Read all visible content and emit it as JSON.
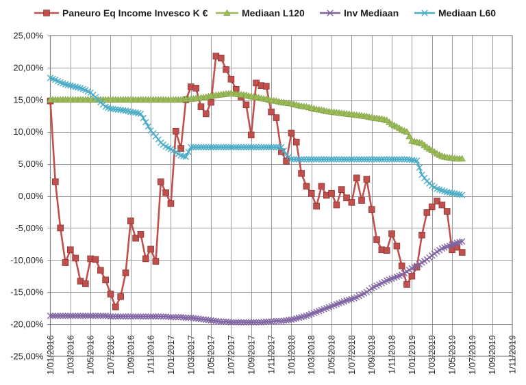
{
  "chart_data": {
    "type": "line",
    "title": "",
    "start_month": "2016-01",
    "points_per_month": 2,
    "x_months_total": 46,
    "ylim": [
      -25,
      25
    ],
    "y_step": 5,
    "grid": true,
    "legend_position": "top",
    "axis_color": "#808080",
    "grid_color": "#9b9b9b",
    "text_color": "#262626",
    "y_tick_labels": [
      "25,00%",
      "20,00%",
      "15,00%",
      "10,00%",
      "5,00%",
      "0,00%",
      "-5,00%",
      "-10,00%",
      "-15,00%",
      "-20,00%",
      "-25,00%"
    ],
    "x_tick_labels": [
      "1/01/2016",
      "1/03/2016",
      "1/05/2016",
      "1/07/2016",
      "1/09/2016",
      "1/11/2016",
      "1/01/2017",
      "1/03/2017",
      "1/05/2017",
      "1/07/2017",
      "1/09/2017",
      "1/11/2017",
      "1/01/2018",
      "1/03/2018",
      "1/05/2018",
      "1/07/2018",
      "1/09/2018",
      "1/11/2018",
      "1/01/2019",
      "1/03/2019",
      "1/05/2019",
      "1/07/2019",
      "1/09/2019",
      "1/11/2019"
    ],
    "series": [
      {
        "name": "Paneuro Eq Income Invesco K €",
        "color": "#C0504D",
        "edge": "#8C3331",
        "marker": "square",
        "values": [
          14.8,
          2.2,
          -5.0,
          -10.4,
          -8.4,
          -9.7,
          -13.3,
          -13.7,
          -9.8,
          -9.9,
          -11.6,
          -13.1,
          -15.3,
          -17.3,
          -15.7,
          -12.0,
          -3.9,
          -6.6,
          -6.0,
          -9.8,
          -8.3,
          -10.2,
          2.2,
          0.5,
          -1.2,
          10.1,
          7.4,
          15.0,
          17.0,
          16.8,
          13.9,
          12.8,
          14.6,
          21.8,
          21.5,
          19.7,
          18.2,
          16.6,
          15.4,
          14.2,
          9.5,
          17.6,
          17.2,
          17.1,
          13.1,
          12.2,
          6.9,
          5.4,
          9.8,
          8.4,
          3.5,
          1.5,
          0.4,
          -1.6,
          1.5,
          0.1,
          0.4,
          -1.4,
          1.0,
          -0.3,
          -1.0,
          2.8,
          -0.7,
          2.6,
          -2.1,
          -6.8,
          -8.4,
          -8.5,
          -5.9,
          -7.8,
          -10.9,
          -13.8,
          -12.5,
          -11.1,
          -6.1,
          -2.6,
          -1.7,
          -0.8,
          -1.4,
          -2.4,
          -8.4,
          -8.0,
          -8.8
        ]
      },
      {
        "name": "Mediaan L120",
        "color": "#9BBB59",
        "edge": "#77933C",
        "marker": "triangle",
        "values": [
          15.0,
          15.0,
          15.0,
          15.0,
          15.0,
          15.0,
          15.0,
          15.0,
          15.0,
          15.0,
          15.0,
          15.0,
          15.0,
          15.0,
          15.0,
          15.0,
          15.0,
          15.0,
          15.0,
          15.0,
          15.0,
          15.0,
          15.0,
          15.0,
          15.0,
          15.0,
          15.0,
          15.1,
          15.1,
          15.2,
          15.3,
          15.4,
          15.6,
          15.7,
          15.8,
          15.9,
          16.0,
          15.9,
          15.8,
          15.7,
          15.5,
          15.4,
          15.2,
          15.1,
          14.9,
          14.8,
          14.6,
          14.5,
          14.4,
          14.2,
          14.0,
          13.9,
          13.7,
          13.5,
          13.4,
          13.2,
          13.1,
          13.0,
          12.9,
          12.8,
          12.7,
          12.6,
          12.5,
          12.4,
          12.2,
          12.1,
          12.0,
          11.8,
          11.2,
          10.8,
          10.3,
          10.0,
          8.6,
          8.4,
          8.2,
          7.6,
          7.1,
          6.6,
          6.2,
          6.0,
          5.9,
          5.8,
          5.8
        ]
      },
      {
        "name": "Inv Mediaan",
        "color": "#8064A2",
        "edge": "#8064A2",
        "marker": "x",
        "values": [
          -18.7,
          -18.7,
          -18.7,
          -18.7,
          -18.7,
          -18.7,
          -18.7,
          -18.7,
          -18.7,
          -18.7,
          -18.7,
          -18.7,
          -18.8,
          -18.8,
          -18.8,
          -18.8,
          -18.8,
          -18.8,
          -18.8,
          -18.8,
          -18.8,
          -18.8,
          -18.8,
          -18.8,
          -18.9,
          -18.9,
          -18.9,
          -19.0,
          -19.0,
          -19.1,
          -19.2,
          -19.3,
          -19.4,
          -19.5,
          -19.6,
          -19.6,
          -19.7,
          -19.7,
          -19.7,
          -19.7,
          -19.7,
          -19.7,
          -19.7,
          -19.6,
          -19.6,
          -19.5,
          -19.5,
          -19.4,
          -19.3,
          -19.1,
          -18.9,
          -18.7,
          -18.4,
          -18.1,
          -17.8,
          -17.5,
          -17.2,
          -16.9,
          -16.6,
          -16.3,
          -16.1,
          -15.8,
          -15.4,
          -15.0,
          -14.4,
          -14.0,
          -13.6,
          -13.2,
          -12.9,
          -12.6,
          -12.3,
          -11.8,
          -11.3,
          -10.9,
          -10.4,
          -9.9,
          -9.3,
          -8.7,
          -8.2,
          -7.9,
          -7.6,
          -7.3,
          -7.1
        ]
      },
      {
        "name": "Mediaan L60",
        "color": "#4BACC6",
        "edge": "#4BACC6",
        "marker": "x",
        "values": [
          18.4,
          18.1,
          17.7,
          17.4,
          17.2,
          17.0,
          16.8,
          16.5,
          16.1,
          15.4,
          14.6,
          13.9,
          13.6,
          13.5,
          13.4,
          13.3,
          13.1,
          13.0,
          12.8,
          11.5,
          10.2,
          9.3,
          8.3,
          7.7,
          7.3,
          6.8,
          6.3,
          6.1,
          7.6,
          7.6,
          7.6,
          7.6,
          7.6,
          7.6,
          7.6,
          7.6,
          7.6,
          7.6,
          7.6,
          7.6,
          7.6,
          7.6,
          7.6,
          7.6,
          7.6,
          7.6,
          7.6,
          6.5,
          5.7,
          5.7,
          5.7,
          5.7,
          5.7,
          5.7,
          5.7,
          5.7,
          5.7,
          5.7,
          5.7,
          5.7,
          5.7,
          5.7,
          5.7,
          5.7,
          5.7,
          5.7,
          5.7,
          5.7,
          5.7,
          5.7,
          5.7,
          5.7,
          5.6,
          5.5,
          3.3,
          2.3,
          1.6,
          1.1,
          0.85,
          0.6,
          0.45,
          0.3,
          0.15
        ]
      }
    ]
  }
}
